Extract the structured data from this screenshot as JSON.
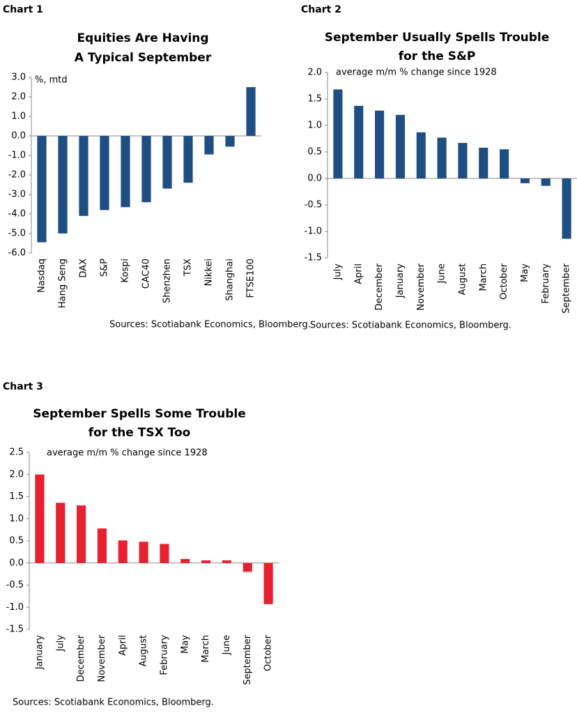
{
  "chart_data": [
    {
      "type": "bar",
      "label": "Chart 1",
      "title": [
        "Equities Are Having",
        "A Typical September"
      ],
      "subtitle": "%, mtd",
      "source": "Sources: Scotiabank Economics, Bloomberg.",
      "categories": [
        "Nasdaq",
        "Hang Seng",
        "DAX",
        "S&P",
        "Kospi",
        "CAC40",
        "Shenzhen",
        "TSX",
        "Nikkei",
        "Shanghai",
        "FTSE100"
      ],
      "values": [
        -5.45,
        -5.0,
        -4.1,
        -3.8,
        -3.65,
        -3.4,
        -2.7,
        -2.4,
        -0.95,
        -0.55,
        2.5
      ],
      "color": "#1f4e83",
      "ylim": [
        -6,
        3
      ],
      "yticks": [
        {
          "value": -6,
          "label": "-6.0"
        },
        {
          "value": -5,
          "label": "-5.0"
        },
        {
          "value": -4,
          "label": "-4.0"
        },
        {
          "value": -3,
          "label": "-3.0"
        },
        {
          "value": -2,
          "label": "-2.0"
        },
        {
          "value": -1,
          "label": "-1.0"
        },
        {
          "value": 0,
          "label": "0.0"
        },
        {
          "value": 1,
          "label": "1.0"
        },
        {
          "value": 2,
          "label": "2.0"
        },
        {
          "value": 3,
          "label": "3.0"
        }
      ]
    },
    {
      "type": "bar",
      "label": "Chart 2",
      "title": [
        "September Usually Spells Trouble",
        "for the S&P"
      ],
      "subtitle": "average m/m % change since 1928",
      "source": "Sources: Scotiabank Economics, Bloomberg.",
      "categories": [
        "July",
        "April",
        "December",
        "January",
        "November",
        "June",
        "August",
        "March",
        "October",
        "May",
        "February",
        "September"
      ],
      "values": [
        1.68,
        1.37,
        1.28,
        1.2,
        0.87,
        0.77,
        0.67,
        0.58,
        0.55,
        -0.09,
        -0.14,
        -1.14
      ],
      "color": "#1f4e83",
      "ylim": [
        -1.5,
        2
      ],
      "yticks": [
        -1.5,
        {
          "value": -1,
          "label": "-1.0"
        },
        -0.5,
        {
          "value": 0,
          "label": "0.0"
        },
        0.5,
        {
          "value": 1,
          "label": "1.0"
        },
        1.5,
        {
          "value": 2,
          "label": "2.0"
        }
      ]
    },
    {
      "type": "bar",
      "label": "Chart 3",
      "title": [
        "September Spells Some Trouble",
        "for the TSX Too"
      ],
      "subtitle": "average m/m % change since 1928",
      "source": "Sources: Scotiabank Economics, Bloomberg.",
      "categories": [
        "January",
        "July",
        "December",
        "November",
        "April",
        "August",
        "February",
        "May",
        "March",
        "June",
        "September",
        "October"
      ],
      "values": [
        2.0,
        1.36,
        1.3,
        0.78,
        0.51,
        0.48,
        0.43,
        0.09,
        0.06,
        0.06,
        -0.2,
        -0.93
      ],
      "color": "#e8202f",
      "ylim": [
        -1.5,
        2.5
      ],
      "yticks": [
        -1.5,
        {
          "value": -1,
          "label": "-1.0"
        },
        -0.5,
        {
          "value": 0,
          "label": "0.0"
        },
        0.5,
        {
          "value": 1,
          "label": "1.0"
        },
        1.5,
        {
          "value": 2,
          "label": "2.0"
        },
        2.5
      ]
    }
  ]
}
